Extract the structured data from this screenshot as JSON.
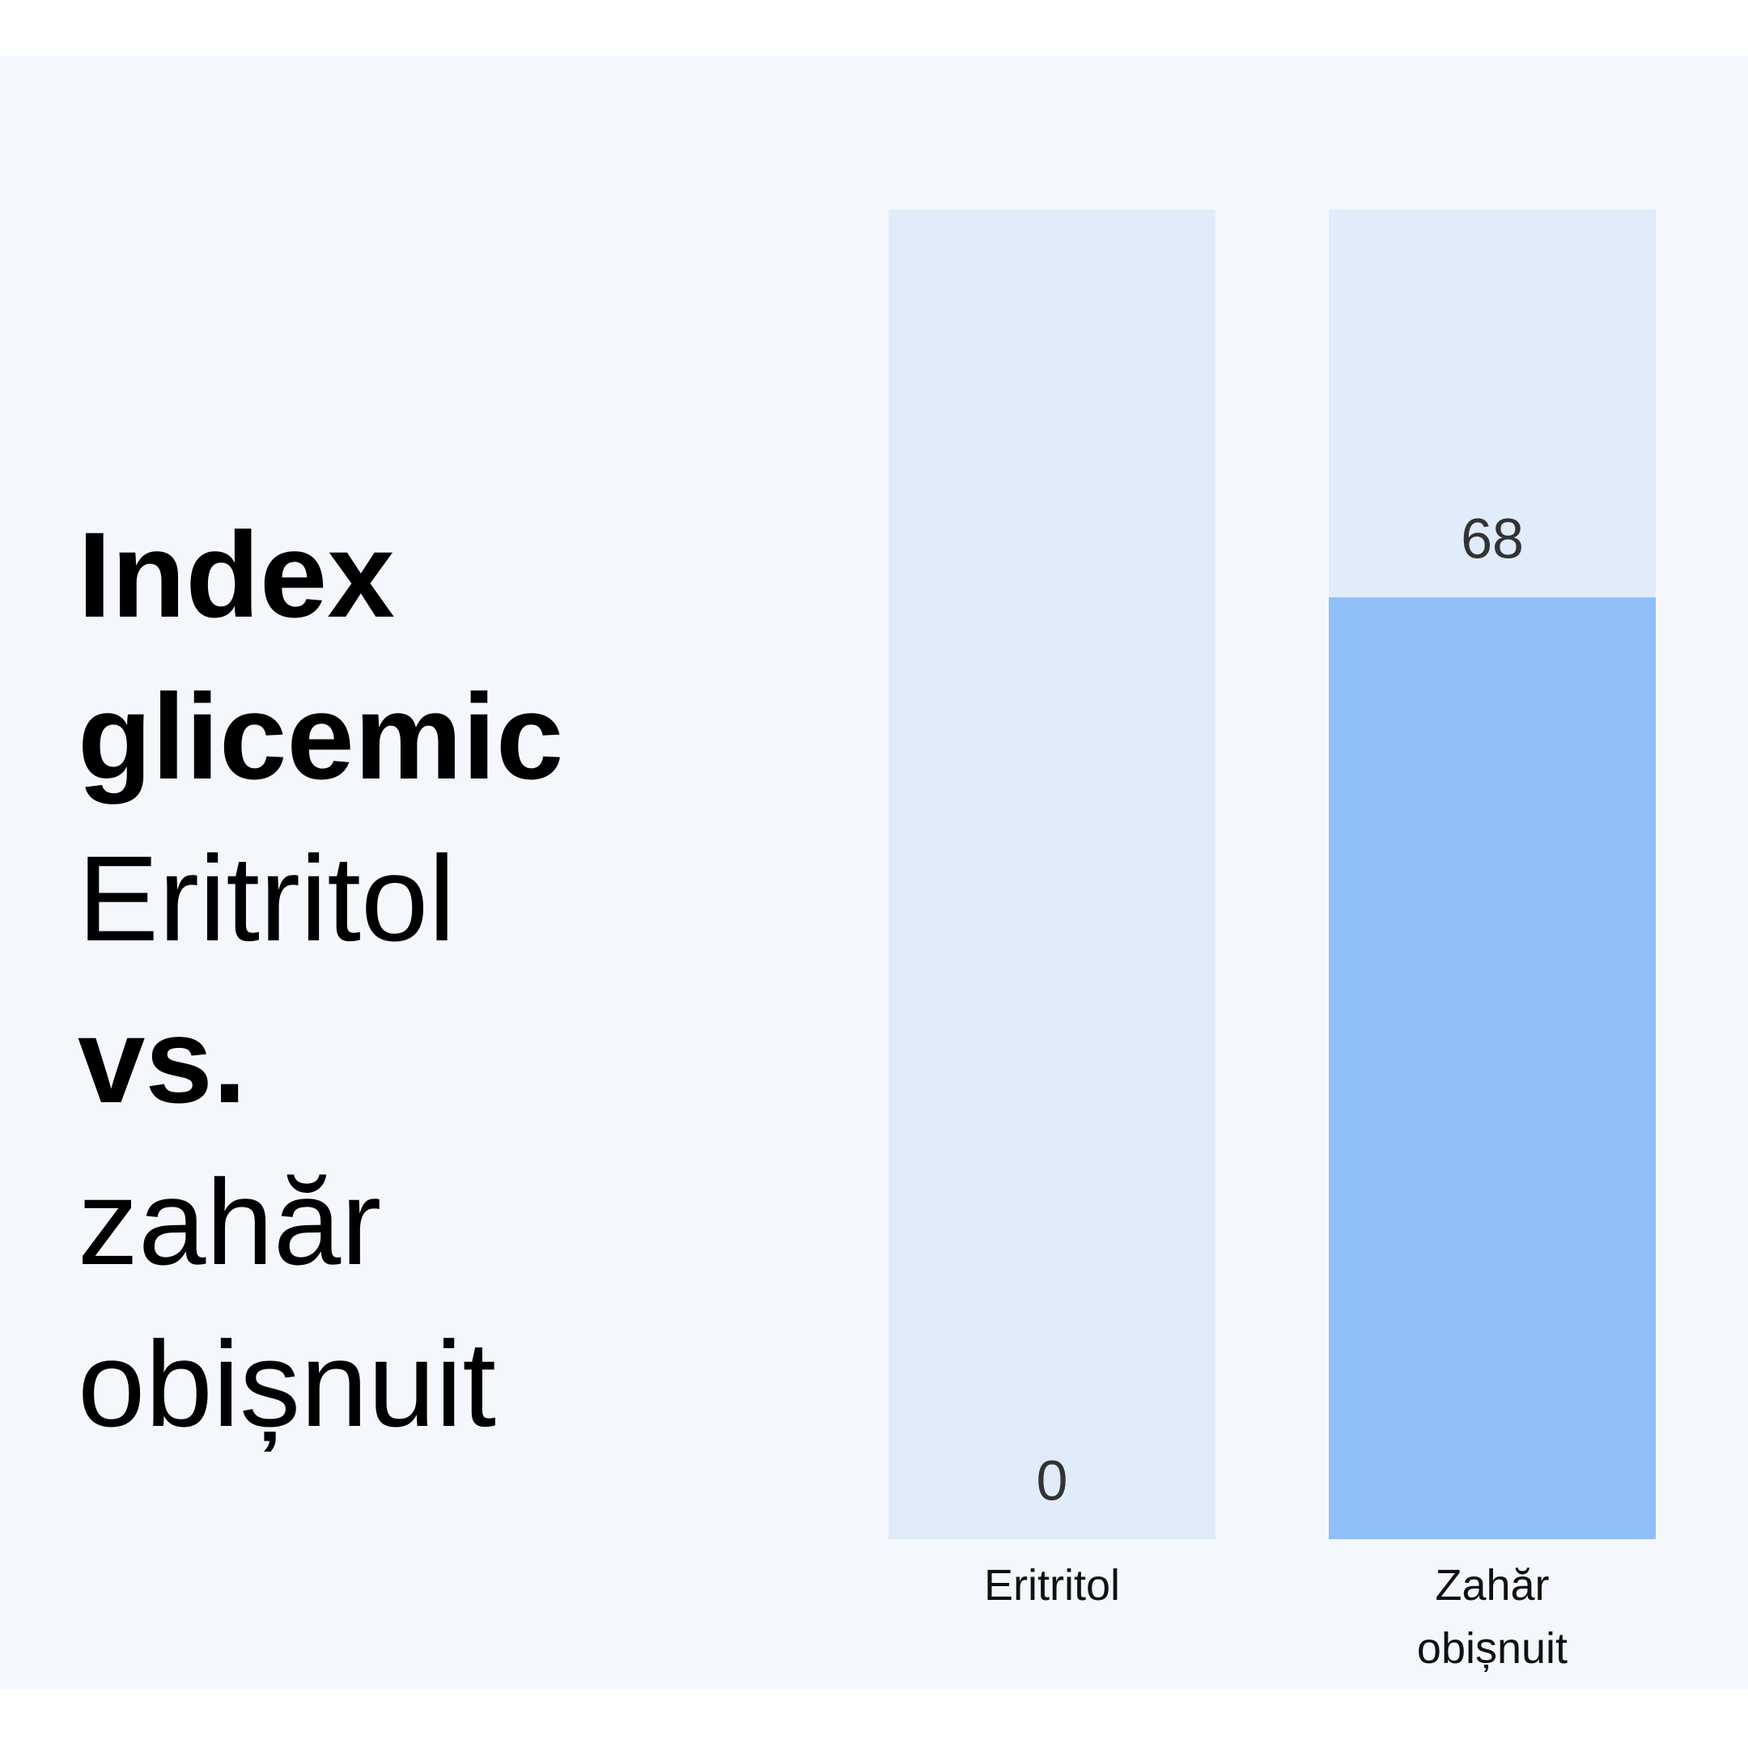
{
  "chart_data": {
    "type": "bar",
    "title": "Index glicemic",
    "subtitle": [
      "Eritritol",
      "vs.",
      "zahăr obișnuit"
    ],
    "categories": [
      "Eritritol",
      "Zahăr obișnuit"
    ],
    "values": [
      0,
      68
    ],
    "color": "#8fbef8",
    "track_color": "#e0ecf9",
    "ylim": [
      0,
      96
    ]
  }
}
